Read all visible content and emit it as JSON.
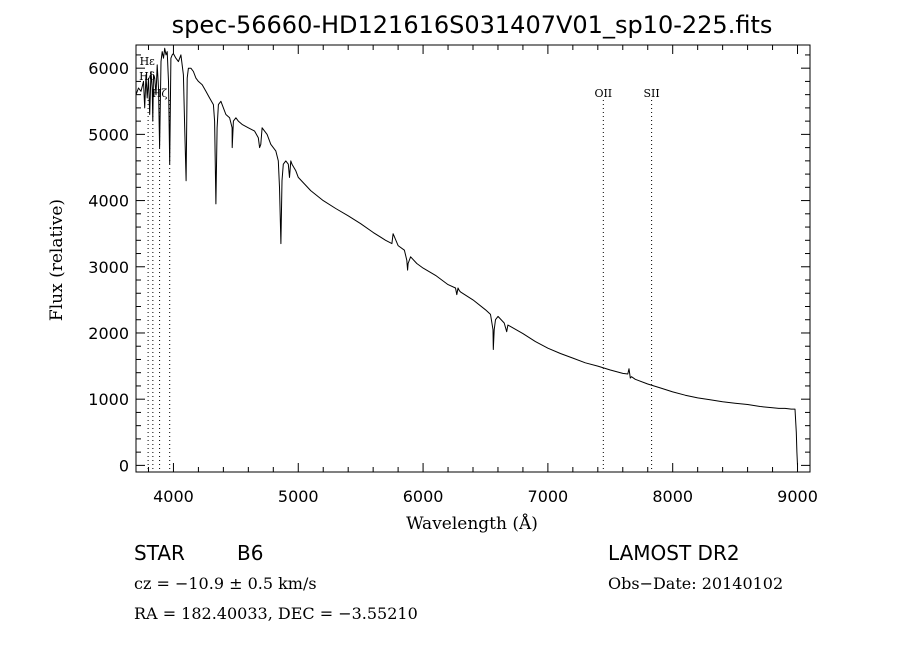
{
  "chart_data": {
    "type": "line",
    "title": "spec-56660-HD121616S031407V01_sp10-225.fits",
    "xlabel": "Wavelength (Å)",
    "ylabel": "Flux (relative)",
    "xlim": [
      3700,
      9100
    ],
    "ylim": [
      -100,
      6350
    ],
    "xticks": [
      4000,
      5000,
      6000,
      7000,
      8000,
      9000
    ],
    "yticks": [
      0,
      1000,
      2000,
      3000,
      4000,
      5000,
      6000
    ],
    "grid": false,
    "series": [
      {
        "x": [
          3700,
          3720,
          3740,
          3760,
          3770,
          3780,
          3790,
          3800,
          3810,
          3820,
          3830,
          3835,
          3840,
          3850,
          3860,
          3870,
          3880,
          3889,
          3900,
          3910,
          3920,
          3930,
          3940,
          3950,
          3960,
          3970,
          3980,
          3990,
          4000,
          4020,
          4040,
          4060,
          4080,
          4090,
          4101,
          4110,
          4120,
          4140,
          4160,
          4180,
          4200,
          4230,
          4260,
          4290,
          4320,
          4330,
          4340,
          4350,
          4360,
          4380,
          4400,
          4420,
          4450,
          4470,
          4471,
          4480,
          4500,
          4520,
          4550,
          4600,
          4650,
          4680,
          4690,
          4700,
          4710,
          4750,
          4780,
          4820,
          4840,
          4850,
          4861,
          4870,
          4880,
          4900,
          4920,
          4930,
          4940,
          4950,
          4980,
          5000,
          5050,
          5100,
          5200,
          5300,
          5400,
          5500,
          5600,
          5700,
          5750,
          5760,
          5800,
          5850,
          5870,
          5876,
          5880,
          5900,
          5950,
          6000,
          6100,
          6200,
          6260,
          6270,
          6280,
          6290,
          6300,
          6400,
          6500,
          6540,
          6560,
          6563,
          6570,
          6580,
          6600,
          6650,
          6670,
          6680,
          6700,
          6800,
          6900,
          7000,
          7100,
          7200,
          7300,
          7400,
          7500,
          7600,
          7640,
          7650,
          7660,
          7670,
          7700,
          7800,
          7900,
          8000,
          8100,
          8200,
          8300,
          8400,
          8500,
          8600,
          8700,
          8800,
          8850,
          8900,
          8950,
          8980,
          8990,
          8995,
          9000
        ],
        "y": [
          5600,
          5700,
          5650,
          5800,
          5400,
          5900,
          5550,
          5850,
          5300,
          5950,
          5700,
          5200,
          5900,
          5850,
          5600,
          6050,
          5700,
          4800,
          6100,
          6250,
          6150,
          6300,
          6200,
          6250,
          5800,
          4550,
          6150,
          6200,
          6220,
          6150,
          6100,
          6200,
          5900,
          5100,
          4300,
          5850,
          6000,
          6000,
          5950,
          5850,
          5800,
          5750,
          5650,
          5550,
          5450,
          5200,
          3950,
          5100,
          5450,
          5500,
          5400,
          5300,
          5250,
          5100,
          4800,
          5200,
          5250,
          5200,
          5150,
          5100,
          5050,
          4950,
          4800,
          4850,
          5100,
          5000,
          4850,
          4750,
          4600,
          4200,
          3350,
          4300,
          4550,
          4600,
          4550,
          4350,
          4600,
          4550,
          4450,
          4350,
          4250,
          4150,
          4000,
          3880,
          3770,
          3650,
          3520,
          3400,
          3350,
          3500,
          3320,
          3250,
          3100,
          2950,
          3050,
          3150,
          3050,
          2980,
          2870,
          2730,
          2680,
          2580,
          2680,
          2640,
          2620,
          2500,
          2350,
          2280,
          2050,
          1750,
          2050,
          2200,
          2250,
          2150,
          2020,
          2120,
          2100,
          1990,
          1870,
          1770,
          1690,
          1620,
          1550,
          1500,
          1440,
          1390,
          1380,
          1460,
          1320,
          1340,
          1300,
          1230,
          1170,
          1110,
          1060,
          1020,
          990,
          960,
          940,
          920,
          890,
          870,
          860,
          860,
          850,
          850,
          500,
          200,
          0
        ]
      }
    ],
    "lines": [
      {
        "x": 3797,
        "label": ""
      },
      {
        "x": 3835,
        "label": ""
      },
      {
        "x": 3889,
        "label": "Hζ"
      },
      {
        "x": 3970,
        "label": ""
      },
      {
        "x": 7444,
        "label": "OII"
      },
      {
        "x": 7831,
        "label": "SII"
      }
    ],
    "labels": [
      "Hε",
      "Hδ"
    ]
  },
  "info": {
    "class": "STAR",
    "subclass": "B6",
    "cz": "cz = −10.9 ± 0.5 km/s",
    "coords": "RA = 182.40033, DEC =  −3.55210",
    "survey": "LAMOST DR2",
    "obs_date": "Obs−Date: 20140102"
  }
}
